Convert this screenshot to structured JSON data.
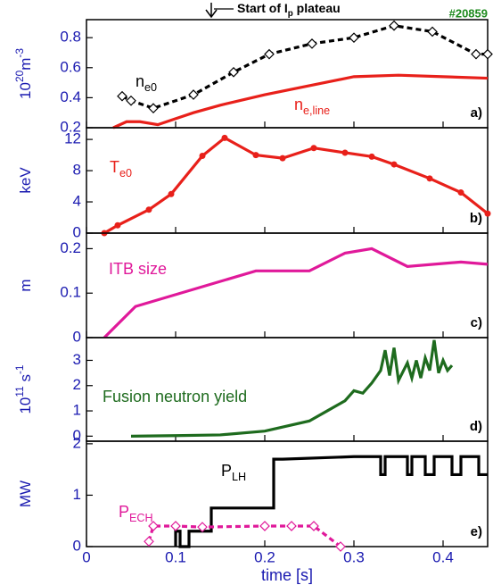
{
  "chart_data": [
    {
      "type": "line",
      "panel_label": "a)",
      "annotation": {
        "text": "Start of I",
        "sub": "p",
        "tail": " plateau"
      },
      "shot": "#20859",
      "ylabel": [
        "10",
        "20",
        "m",
        "-3"
      ],
      "ylabel_style": [
        "normal",
        "sup",
        "normal",
        "sup"
      ],
      "xlim": [
        0,
        0.45
      ],
      "xticks": [
        0,
        0.1,
        0.2,
        0.3,
        0.4
      ],
      "ylim": [
        0.2,
        0.92
      ],
      "yticks": [
        0.2,
        0.4,
        0.6,
        0.8
      ],
      "series": [
        {
          "label": "n",
          "label_sub": "e0",
          "color": "#000000",
          "dash": true,
          "marker": "diamond",
          "x": [
            0.04,
            0.05,
            0.075,
            0.12,
            0.165,
            0.205,
            0.253,
            0.3,
            0.345,
            0.388,
            0.437,
            0.45
          ],
          "values": [
            0.41,
            0.38,
            0.33,
            0.42,
            0.57,
            0.69,
            0.76,
            0.8,
            0.88,
            0.84,
            0.69,
            0.69
          ]
        },
        {
          "label": "n",
          "label_sub": "e,line",
          "color": "#e8201a",
          "dash": false,
          "marker": "none",
          "x": [
            0.03,
            0.045,
            0.06,
            0.08,
            0.1,
            0.12,
            0.15,
            0.2,
            0.25,
            0.3,
            0.35,
            0.4,
            0.45
          ],
          "values": [
            0.2,
            0.24,
            0.24,
            0.22,
            0.26,
            0.3,
            0.35,
            0.42,
            0.48,
            0.54,
            0.55,
            0.54,
            0.53
          ]
        }
      ]
    },
    {
      "type": "line",
      "panel_label": "b)",
      "ylabel": [
        "keV"
      ],
      "ylabel_style": [
        "normal"
      ],
      "xlim": [
        0,
        0.45
      ],
      "xticks": [
        0,
        0.1,
        0.2,
        0.3,
        0.4
      ],
      "ylim": [
        0,
        13.5
      ],
      "yticks": [
        0,
        4,
        8,
        12
      ],
      "series": [
        {
          "label": "T",
          "label_sub": "e0",
          "color": "#e8201a",
          "dash": false,
          "marker": "circle",
          "x": [
            0.02,
            0.035,
            0.07,
            0.095,
            0.13,
            0.155,
            0.19,
            0.22,
            0.255,
            0.29,
            0.32,
            0.345,
            0.385,
            0.42,
            0.45
          ],
          "values": [
            0,
            1,
            3,
            5,
            9.9,
            12.2,
            10,
            9.6,
            10.9,
            10.3,
            9.8,
            8.8,
            7,
            5.2,
            2.5
          ]
        }
      ]
    },
    {
      "type": "line",
      "panel_label": "c)",
      "ylabel": [
        "m"
      ],
      "ylabel_style": [
        "normal"
      ],
      "xlim": [
        0,
        0.45
      ],
      "xticks": [
        0,
        0.1,
        0.2,
        0.3,
        0.4
      ],
      "ylim": [
        0,
        0.235
      ],
      "yticks": [
        0,
        0.1,
        0.2
      ],
      "series": [
        {
          "label": "ITB size",
          "color": "#e0199a",
          "dash": false,
          "marker": "none",
          "x": [
            0.02,
            0.055,
            0.19,
            0.25,
            0.29,
            0.32,
            0.36,
            0.42,
            0.45
          ],
          "values": [
            0,
            0.07,
            0.15,
            0.15,
            0.19,
            0.2,
            0.16,
            0.17,
            0.165
          ]
        }
      ]
    },
    {
      "type": "line",
      "panel_label": "d)",
      "ylabel": [
        "10",
        "11",
        " s",
        "-1"
      ],
      "ylabel_style": [
        "normal",
        "sup",
        "normal",
        "sup"
      ],
      "xlim": [
        0,
        0.45
      ],
      "xticks": [
        0,
        0.1,
        0.2,
        0.3,
        0.4
      ],
      "ylim": [
        -0.2,
        3.9
      ],
      "yticks": [
        0,
        1,
        2,
        3
      ],
      "series": [
        {
          "label": "Fusion neutron yield",
          "color": "#1e6b1e",
          "dash": false,
          "marker": "none",
          "x": [
            0.05,
            0.1,
            0.15,
            0.2,
            0.25,
            0.27,
            0.29,
            0.3,
            0.31,
            0.32,
            0.33,
            0.335,
            0.34,
            0.345,
            0.35,
            0.36,
            0.365,
            0.37,
            0.375,
            0.38,
            0.385,
            0.39,
            0.395,
            0.4,
            0.405,
            0.41
          ],
          "values": [
            0,
            0.02,
            0.05,
            0.2,
            0.6,
            1.0,
            1.4,
            1.8,
            1.7,
            2.1,
            2.6,
            3.4,
            2.4,
            3.5,
            2.2,
            2.9,
            2.3,
            3.0,
            2.3,
            3.1,
            2.6,
            3.8,
            2.5,
            3.0,
            2.6,
            2.8
          ]
        }
      ]
    },
    {
      "type": "line",
      "panel_label": "e)",
      "ylabel": [
        "MW"
      ],
      "ylabel_style": [
        "normal"
      ],
      "xlabel": "time [s]",
      "xlim": [
        0,
        0.45
      ],
      "xticks": [
        0,
        0.1,
        0.2,
        0.3,
        0.4
      ],
      "ylim": [
        0,
        2.05
      ],
      "yticks": [
        0,
        1,
        2
      ],
      "series": [
        {
          "label": "P",
          "label_sub": "LH",
          "color": "#000000",
          "dash": false,
          "marker": "none",
          "x": [
            0.1,
            0.1,
            0.105,
            0.105,
            0.115,
            0.115,
            0.14,
            0.14,
            0.21,
            0.21,
            0.22,
            0.3,
            0.33,
            0.33,
            0.335,
            0.335,
            0.36,
            0.36,
            0.365,
            0.365,
            0.38,
            0.38,
            0.39,
            0.39,
            0.41,
            0.41,
            0.42,
            0.42,
            0.44,
            0.44,
            0.45
          ],
          "values": [
            0,
            0.3,
            0.3,
            0,
            0,
            0.3,
            0.3,
            0.75,
            0.75,
            1.7,
            1.7,
            1.75,
            1.75,
            1.4,
            1.4,
            1.75,
            1.75,
            1.4,
            1.4,
            1.75,
            1.75,
            1.4,
            1.4,
            1.75,
            1.75,
            1.4,
            1.4,
            1.75,
            1.75,
            1.4,
            1.4
          ]
        },
        {
          "label": "P",
          "label_sub": "ECH",
          "color": "#e0199a",
          "dash": true,
          "marker": "diamond",
          "x": [
            0.07,
            0.075,
            0.1,
            0.13,
            0.2,
            0.23,
            0.255,
            0.285
          ],
          "values": [
            0.1,
            0.4,
            0.4,
            0.38,
            0.4,
            0.4,
            0.4,
            0
          ]
        }
      ]
    }
  ]
}
